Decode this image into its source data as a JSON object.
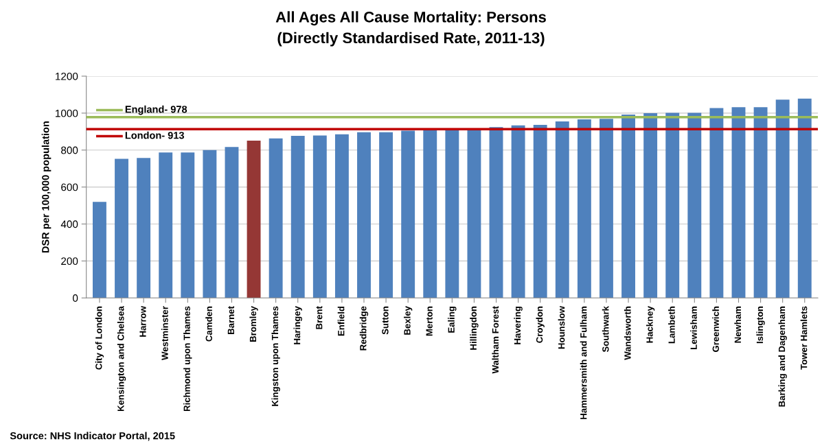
{
  "chart_data": {
    "type": "bar",
    "title": "All Ages All Cause Mortality: Persons\n(Directly Standardised Rate, 2011-13)",
    "ylabel": "DSR per 100,000 population",
    "categories": [
      "City of London",
      "Kensington and Chelsea",
      "Harrow",
      "Westminster",
      "Richmond upon Thames",
      "Camden",
      "Barnet",
      "Bromley",
      "Kingston upon Thames",
      "Haringey",
      "Brent",
      "Enfield",
      "Redbridge",
      "Sutton",
      "Bexley",
      "Merton",
      "Ealing",
      "Hillingdon",
      "Waltham Forest",
      "Havering",
      "Croydon",
      "Hounslow",
      "Hammersmith and Fulham",
      "Southwark",
      "Wandsworth",
      "Hackney",
      "Lambeth",
      "Lewisham",
      "Greenwich",
      "Newham",
      "Islington",
      "Barking and Dagenham",
      "Tower Hamlets"
    ],
    "values": [
      520,
      753,
      757,
      787,
      787,
      800,
      817,
      851,
      863,
      877,
      879,
      885,
      897,
      897,
      905,
      908,
      910,
      912,
      924,
      934,
      936,
      955,
      966,
      969,
      992,
      1000,
      1001,
      1001,
      1027,
      1032,
      1032,
      1073,
      1078
    ],
    "colors": [
      "#4f81bd",
      "#4f81bd",
      "#4f81bd",
      "#4f81bd",
      "#4f81bd",
      "#4f81bd",
      "#4f81bd",
      "#953735",
      "#4f81bd",
      "#4f81bd",
      "#4f81bd",
      "#4f81bd",
      "#4f81bd",
      "#4f81bd",
      "#4f81bd",
      "#4f81bd",
      "#4f81bd",
      "#4f81bd",
      "#4f81bd",
      "#4f81bd",
      "#4f81bd",
      "#4f81bd",
      "#4f81bd",
      "#4f81bd",
      "#4f81bd",
      "#4f81bd",
      "#4f81bd",
      "#4f81bd",
      "#4f81bd",
      "#4f81bd",
      "#4f81bd",
      "#4f81bd",
      "#4f81bd"
    ],
    "ylim": [
      0,
      1200
    ],
    "yticks": [
      0,
      200,
      400,
      600,
      800,
      1000,
      1200
    ],
    "grid": "y",
    "ref_lines": [
      {
        "axis": "y",
        "value": 978,
        "label": "England- 978",
        "color": "#9bbb59"
      },
      {
        "axis": "y",
        "value": 913,
        "label": "London- 913",
        "color": "#c00000"
      }
    ],
    "annotations": [
      "Source: NHS Indicator Portal, 2015"
    ]
  }
}
